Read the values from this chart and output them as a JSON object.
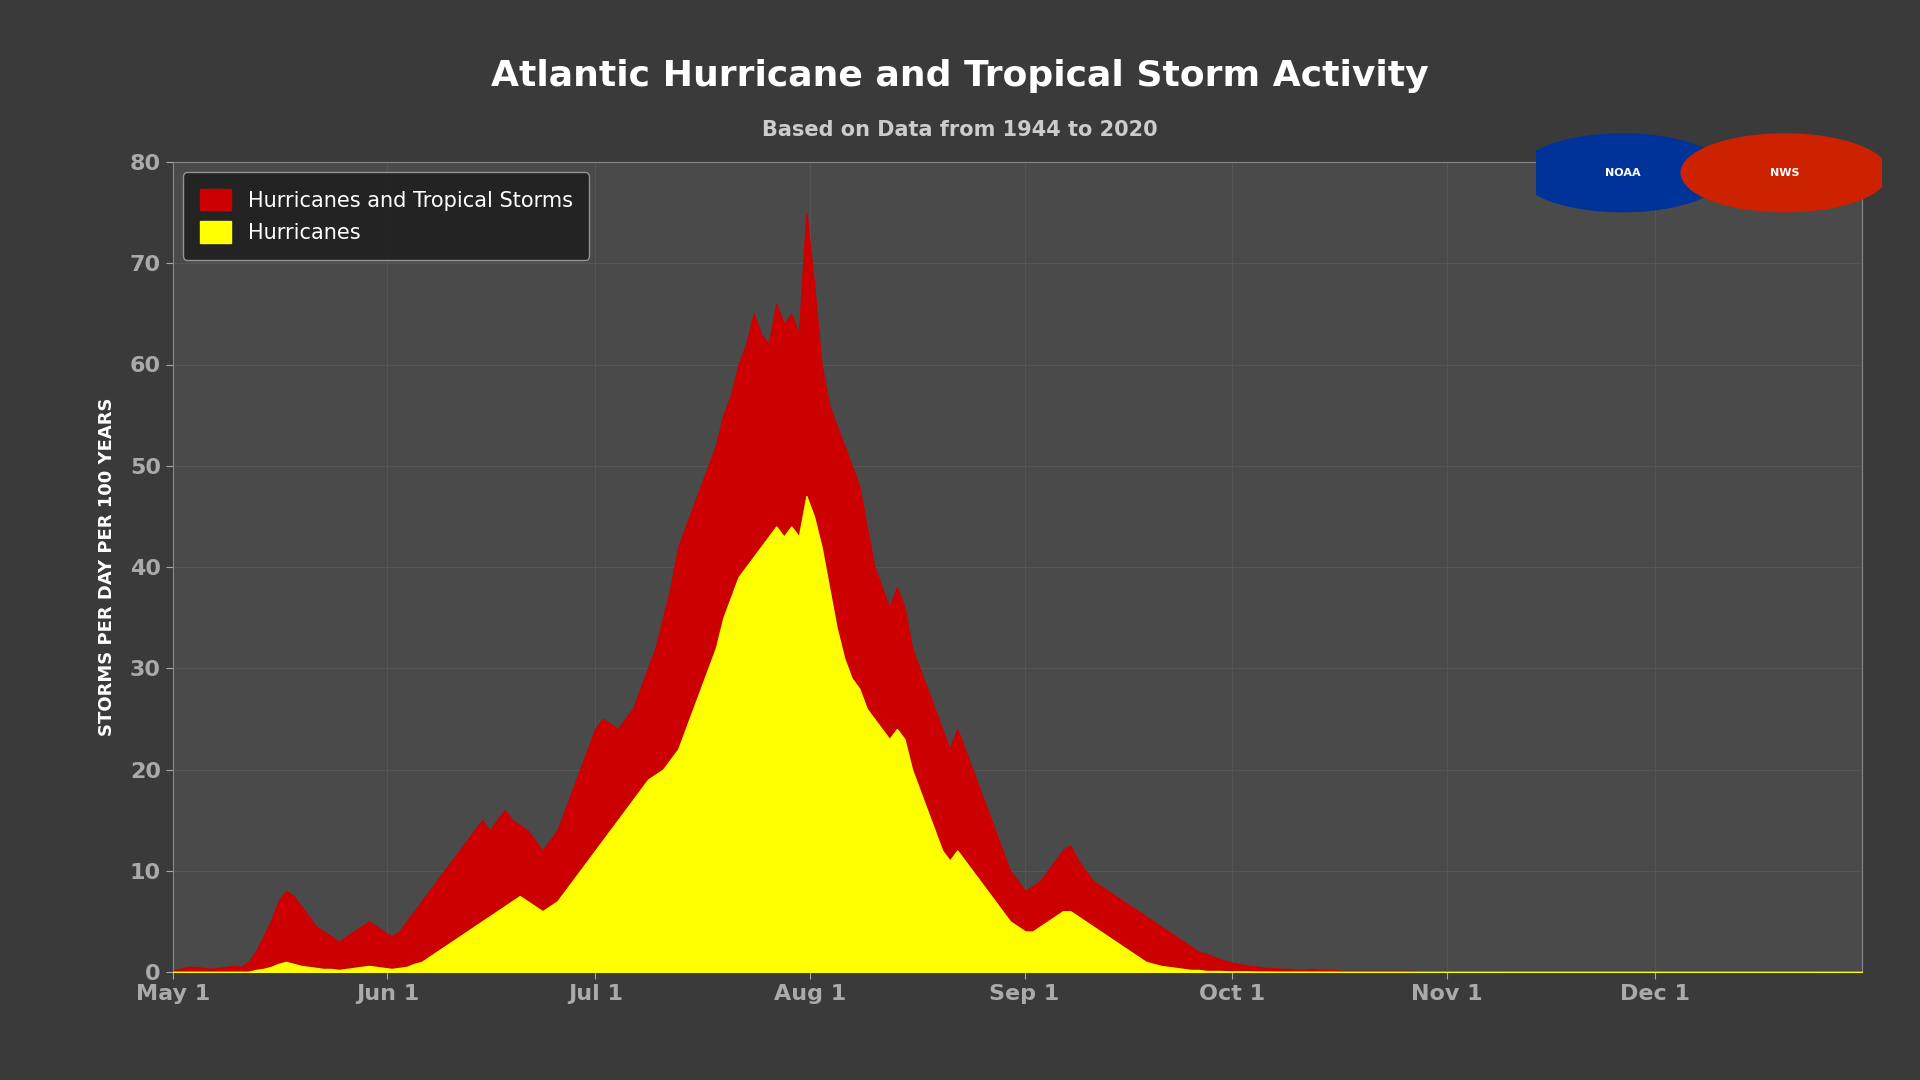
{
  "title": "Atlantic Hurricane and Tropical Storm Activity",
  "subtitle": "Based on Data from 1944 to 2020",
  "ylabel": "STORMS PER DAY PER 100 YEARS",
  "background_color": "#3a3a3a",
  "plot_bg_color": "#4a4a4a",
  "grid_color": "#5a5a5a",
  "title_color": "#ffffff",
  "subtitle_color": "#cccccc",
  "tick_label_color": "#ffffff",
  "ylabel_color": "#ffffff",
  "ylim": [
    0,
    80
  ],
  "yticks": [
    0,
    10,
    20,
    30,
    40,
    50,
    60,
    70,
    80
  ],
  "red_color": "#cc0000",
  "yellow_color": "#ffff00",
  "legend_bg": "#1a1a1a",
  "legend_text_color": "#ffffff",
  "x_tick_labels": [
    "May 1",
    "Jun 1",
    "Jul 1",
    "Aug 1",
    "Sep 1",
    "Oct 1",
    "Nov 1",
    "Dec 1"
  ],
  "red_data": [
    0.2,
    0.3,
    0.5,
    0.5,
    0.4,
    0.3,
    0.4,
    0.5,
    0.6,
    0.5,
    1.0,
    2.0,
    3.5,
    5.0,
    7.0,
    8.0,
    7.5,
    6.5,
    5.5,
    4.5,
    4.0,
    3.5,
    3.0,
    3.5,
    4.0,
    4.5,
    5.0,
    4.5,
    4.0,
    3.5,
    4.0,
    5.0,
    6.0,
    7.0,
    8.0,
    9.0,
    10.0,
    11.0,
    12.0,
    13.0,
    14.0,
    15.0,
    14.0,
    15.0,
    16.0,
    15.0,
    14.5,
    14.0,
    13.0,
    12.0,
    13.0,
    14.0,
    16.0,
    18.0,
    20.0,
    22.0,
    24.0,
    25.0,
    24.5,
    24.0,
    25.0,
    26.0,
    28.0,
    30.0,
    32.0,
    35.0,
    38.0,
    42.0,
    44.0,
    46.0,
    48.0,
    50.0,
    52.0,
    55.0,
    57.0,
    60.0,
    62.0,
    65.0,
    63.0,
    62.0,
    66.0,
    64.0,
    65.0,
    63.0,
    75.0,
    68.0,
    60.0,
    56.0,
    54.0,
    52.0,
    50.0,
    48.0,
    44.0,
    40.0,
    38.0,
    36.0,
    38.0,
    36.0,
    32.0,
    30.0,
    28.0,
    26.0,
    24.0,
    22.0,
    24.0,
    22.0,
    20.0,
    18.0,
    16.0,
    14.0,
    12.0,
    10.0,
    9.0,
    8.0,
    8.5,
    9.0,
    10.0,
    11.0,
    12.0,
    12.5,
    11.0,
    10.0,
    9.0,
    8.5,
    8.0,
    7.5,
    7.0,
    6.5,
    6.0,
    5.5,
    5.0,
    4.5,
    4.0,
    3.5,
    3.0,
    2.5,
    2.0,
    1.8,
    1.5,
    1.2,
    1.0,
    0.8,
    0.7,
    0.6,
    0.5,
    0.4,
    0.4,
    0.3,
    0.3,
    0.2,
    0.2,
    0.3,
    0.2,
    0.2,
    0.2,
    0.1,
    0.1,
    0.1,
    0.1,
    0.1,
    0.1,
    0.1,
    0.1,
    0.1,
    0.1,
    0.05,
    0.05,
    0.05,
    0.05,
    0.05,
    0.05,
    0.05,
    0.05,
    0.05,
    0.05,
    0.05,
    0.05,
    0.02,
    0.02,
    0.02,
    0.02,
    0.02,
    0.02,
    0.02,
    0.02,
    0.02,
    0.01,
    0.01,
    0.01,
    0.01,
    0.01,
    0.01,
    0.01,
    0.01,
    0.01,
    0.01,
    0.01,
    0.01,
    0.01,
    0.01,
    0.01,
    0.01,
    0.01,
    0.01,
    0.01,
    0.01,
    0.01,
    0.01,
    0.01,
    0.01,
    0.01,
    0.01,
    0.01,
    0.01,
    0.01,
    0.01,
    0.01,
    0.01,
    0.05,
    0.05,
    0.05,
    0.05,
    0.02,
    0.02,
    0.01
  ],
  "yellow_data": [
    0.0,
    0.0,
    0.0,
    0.0,
    0.0,
    0.0,
    0.0,
    0.0,
    0.0,
    0.0,
    0.0,
    0.2,
    0.3,
    0.5,
    0.8,
    1.0,
    0.8,
    0.6,
    0.5,
    0.4,
    0.3,
    0.3,
    0.2,
    0.3,
    0.4,
    0.5,
    0.6,
    0.5,
    0.4,
    0.3,
    0.4,
    0.5,
    0.8,
    1.0,
    1.5,
    2.0,
    2.5,
    3.0,
    3.5,
    4.0,
    4.5,
    5.0,
    5.5,
    6.0,
    6.5,
    7.0,
    7.5,
    7.0,
    6.5,
    6.0,
    6.5,
    7.0,
    8.0,
    9.0,
    10.0,
    11.0,
    12.0,
    13.0,
    14.0,
    15.0,
    16.0,
    17.0,
    18.0,
    19.0,
    19.5,
    20.0,
    21.0,
    22.0,
    24.0,
    26.0,
    28.0,
    30.0,
    32.0,
    35.0,
    37.0,
    39.0,
    40.0,
    41.0,
    42.0,
    43.0,
    44.0,
    43.0,
    44.0,
    43.0,
    47.0,
    45.0,
    42.0,
    38.0,
    34.0,
    31.0,
    29.0,
    28.0,
    26.0,
    25.0,
    24.0,
    23.0,
    24.0,
    23.0,
    20.0,
    18.0,
    16.0,
    14.0,
    12.0,
    11.0,
    12.0,
    11.0,
    10.0,
    9.0,
    8.0,
    7.0,
    6.0,
    5.0,
    4.5,
    4.0,
    4.0,
    4.5,
    5.0,
    5.5,
    6.0,
    6.0,
    5.5,
    5.0,
    4.5,
    4.0,
    3.5,
    3.0,
    2.5,
    2.0,
    1.5,
    1.0,
    0.8,
    0.6,
    0.5,
    0.4,
    0.3,
    0.2,
    0.2,
    0.1,
    0.1,
    0.1,
    0.05,
    0.05,
    0.05,
    0.03,
    0.02,
    0.02,
    0.01,
    0.01,
    0.01,
    0.01,
    0.01,
    0.01,
    0.01,
    0.01,
    0.01,
    0.0,
    0.0,
    0.0,
    0.0,
    0.0,
    0.0,
    0.0,
    0.0,
    0.0,
    0.0,
    0.0,
    0.0,
    0.0,
    0.0,
    0.0,
    0.0,
    0.0,
    0.0,
    0.0,
    0.0,
    0.0,
    0.0,
    0.0,
    0.0,
    0.0,
    0.0,
    0.0,
    0.0,
    0.0,
    0.0,
    0.0,
    0.0,
    0.0,
    0.0,
    0.0,
    0.0,
    0.0,
    0.0,
    0.0,
    0.0,
    0.0,
    0.0,
    0.0,
    0.0,
    0.0,
    0.0,
    0.0,
    0.0,
    0.0,
    0.0,
    0.0,
    0.0,
    0.0,
    0.0,
    0.0,
    0.0,
    0.0,
    0.0,
    0.0,
    0.0,
    0.0,
    0.0,
    0.0,
    0.0,
    0.0,
    0.0,
    0.0,
    0.0,
    0.0,
    0.0
  ]
}
